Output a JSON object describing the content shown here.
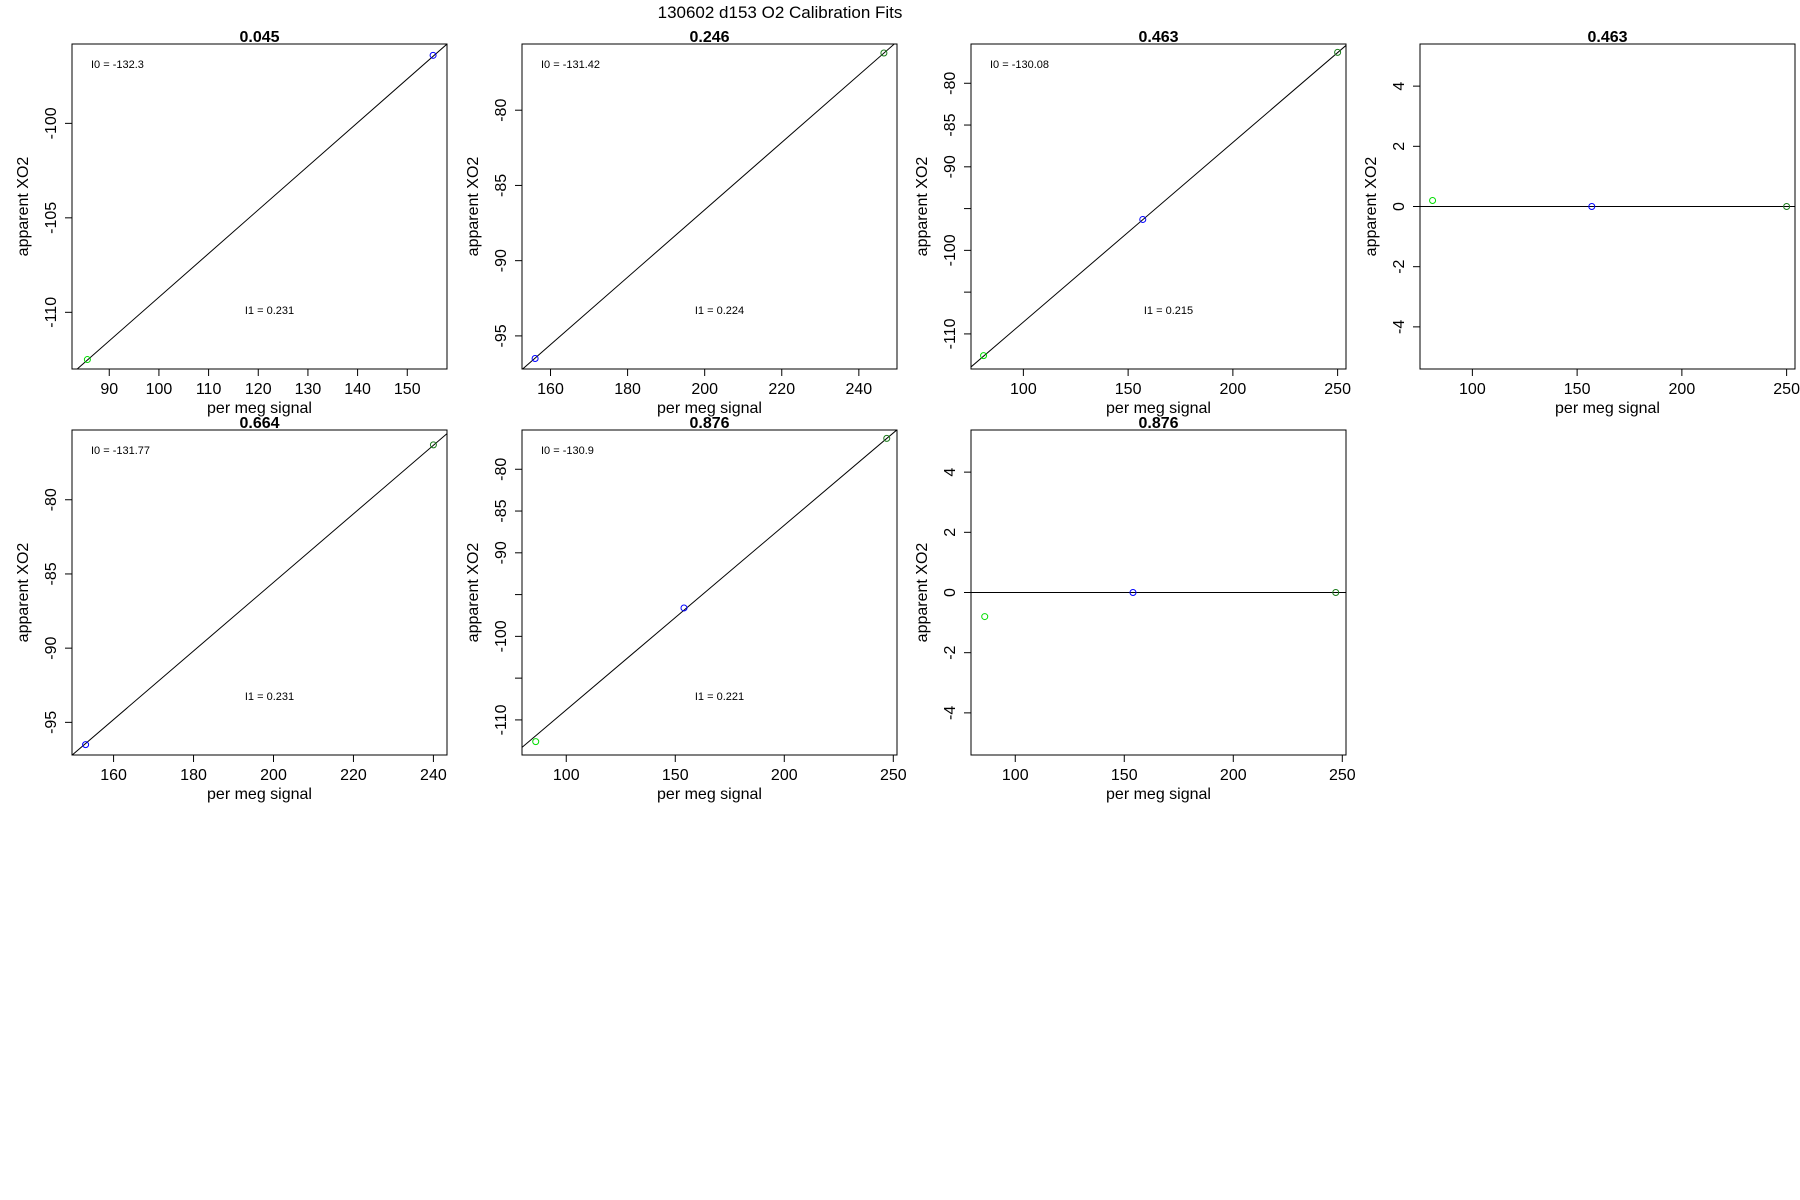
{
  "figure_title": "130602   d153   O2 Calibration Fits",
  "colors": {
    "blue": "#0000ff",
    "green": "#00dd00",
    "dark_green": "#1a7a1a",
    "axis": "#000000"
  },
  "chart_data": [
    {
      "type": "scatter",
      "title": "0.045",
      "xlabel": "per meg signal",
      "ylabel": "apparent XO2",
      "xlim": [
        82.5,
        158
      ],
      "ylim": [
        -113,
        -95.8
      ],
      "xticks": [
        "90",
        "100",
        "110",
        "120",
        "130",
        "140",
        "150"
      ],
      "yticks": [
        "-100",
        "-105",
        "-110"
      ],
      "fit": {
        "intercept": -132.3,
        "slope": 0.231
      },
      "annotations": {
        "i0": "I0 =  -132.3",
        "i1": "I1 =  0.231"
      },
      "points": [
        {
          "x": 85.6,
          "y": -112.5,
          "color": "green"
        },
        {
          "x": 155.2,
          "y": -96.4,
          "color": "blue"
        }
      ]
    },
    {
      "type": "scatter",
      "title": "0.246",
      "xlabel": "per meg signal",
      "ylabel": "apparent XO2",
      "xlim": [
        152.6,
        249.9
      ],
      "ylim": [
        -97.2,
        -75.6
      ],
      "xticks": [
        "160",
        "180",
        "200",
        "220",
        "240"
      ],
      "yticks": [
        "-80",
        "-85",
        "-90",
        "-95"
      ],
      "fit": {
        "intercept": -131.42,
        "slope": 0.224
      },
      "annotations": {
        "i0": "I0 =  -131.42",
        "i1": "I1 =  0.224"
      },
      "points": [
        {
          "x": 156.0,
          "y": -96.5,
          "color": "blue"
        },
        {
          "x": 246.5,
          "y": -76.2,
          "color": "dark_green"
        }
      ]
    },
    {
      "type": "scatter",
      "title": "0.463",
      "xlabel": "per meg signal",
      "ylabel": "apparent XO2",
      "xlim": [
        75,
        254
      ],
      "ylim": [
        -114.2,
        -75.3
      ],
      "xticks": [
        "100",
        "150",
        "200",
        "250"
      ],
      "yticks": [
        "-80",
        "-85",
        "-90",
        "-100",
        "-110"
      ],
      "yticks_extra": [
        "-95",
        "-105"
      ],
      "fit": {
        "intercept": -130.08,
        "slope": 0.215
      },
      "annotations": {
        "i0": "I0 =  -130.08",
        "i1": "I1 =  0.215"
      },
      "points": [
        {
          "x": 81,
          "y": -112.6,
          "color": "green"
        },
        {
          "x": 157,
          "y": -96.3,
          "color": "blue"
        },
        {
          "x": 250,
          "y": -76.3,
          "color": "dark_green"
        }
      ]
    },
    {
      "type": "scatter",
      "title": "0.463",
      "xlabel": "per meg signal",
      "ylabel": "apparent XO2",
      "xlim": [
        75,
        254
      ],
      "ylim": [
        -5.4,
        5.4
      ],
      "xticks": [
        "100",
        "150",
        "200",
        "250"
      ],
      "yticks": [
        "4",
        "2",
        "0",
        "-2",
        "-4"
      ],
      "hline": 0,
      "points": [
        {
          "x": 81,
          "y": 0.2,
          "color": "green"
        },
        {
          "x": 157,
          "y": 0.0,
          "color": "blue"
        },
        {
          "x": 250,
          "y": 0.0,
          "color": "dark_green"
        }
      ]
    },
    {
      "type": "scatter",
      "title": "0.664",
      "xlabel": "per meg signal",
      "ylabel": "apparent XO2",
      "xlim": [
        149.6,
        243.4
      ],
      "ylim": [
        -97.2,
        -75.3
      ],
      "xticks": [
        "160",
        "180",
        "200",
        "220",
        "240"
      ],
      "yticks": [
        "-80",
        "-85",
        "-90",
        "-95"
      ],
      "fit": {
        "intercept": -131.77,
        "slope": 0.231
      },
      "annotations": {
        "i0": "I0 =  -131.77",
        "i1": "I1 =  0.231"
      },
      "points": [
        {
          "x": 153.0,
          "y": -96.5,
          "color": "blue"
        },
        {
          "x": 240.0,
          "y": -76.3,
          "color": "dark_green"
        }
      ]
    },
    {
      "type": "scatter",
      "title": "0.876",
      "xlabel": "per meg signal",
      "ylabel": "apparent XO2",
      "xlim": [
        79.7,
        251.7
      ],
      "ylim": [
        -114.2,
        -75.3
      ],
      "xticks": [
        "100",
        "150",
        "200",
        "250"
      ],
      "yticks": [
        "-80",
        "-85",
        "-90",
        "-100",
        "-110"
      ],
      "yticks_extra": [
        "-95",
        "-105"
      ],
      "fit": {
        "intercept": -130.9,
        "slope": 0.221
      },
      "annotations": {
        "i0": "I0 =  -130.9",
        "i1": "I1 =  0.221"
      },
      "points": [
        {
          "x": 86,
          "y": -112.6,
          "color": "green"
        },
        {
          "x": 154,
          "y": -96.6,
          "color": "blue"
        },
        {
          "x": 247,
          "y": -76.3,
          "color": "dark_green"
        }
      ]
    },
    {
      "type": "scatter",
      "title": "0.876",
      "xlabel": "per meg signal",
      "ylabel": "apparent XO2",
      "xlim": [
        79.7,
        251.7
      ],
      "ylim": [
        -5.4,
        5.4
      ],
      "xticks": [
        "100",
        "150",
        "200",
        "250"
      ],
      "yticks": [
        "4",
        "2",
        "0",
        "-2",
        "-4"
      ],
      "hline": 0,
      "points": [
        {
          "x": 86,
          "y": -0.8,
          "color": "green"
        },
        {
          "x": 154,
          "y": 0.0,
          "color": "blue"
        },
        {
          "x": 247,
          "y": 0.0,
          "color": "dark_green"
        }
      ]
    }
  ]
}
